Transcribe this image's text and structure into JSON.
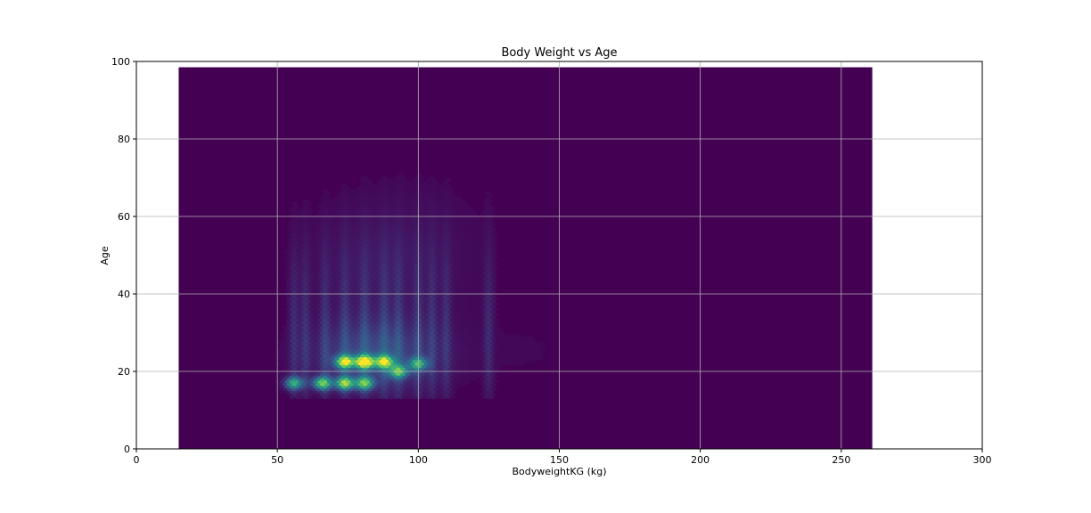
{
  "chart_data": {
    "type": "heatmap",
    "subtype": "hexbin",
    "title": "Body Weight vs Age",
    "xlabel": "BodyweightKG (kg)",
    "ylabel": "Age",
    "xlim": [
      0,
      300
    ],
    "ylim": [
      0,
      100
    ],
    "xticks": [
      0,
      50,
      100,
      150,
      200,
      250,
      300
    ],
    "yticks": [
      0,
      20,
      40,
      60,
      80,
      100
    ],
    "grid": true,
    "colormap": "viridis",
    "hex_extent": {
      "x": [
        15,
        261
      ],
      "y": [
        0,
        98.5
      ]
    },
    "hotspots": [
      {
        "x": 81,
        "y": 22.5,
        "intensity": 1.0
      },
      {
        "x": 74,
        "y": 22.5,
        "intensity": 0.85
      },
      {
        "x": 88,
        "y": 22.5,
        "intensity": 0.8
      },
      {
        "x": 66,
        "y": 17,
        "intensity": 0.7
      },
      {
        "x": 74,
        "y": 17,
        "intensity": 0.75
      },
      {
        "x": 81,
        "y": 17,
        "intensity": 0.65
      },
      {
        "x": 56,
        "y": 17,
        "intensity": 0.55
      },
      {
        "x": 93,
        "y": 20,
        "intensity": 0.6
      },
      {
        "x": 100,
        "y": 22,
        "intensity": 0.5
      }
    ]
  }
}
